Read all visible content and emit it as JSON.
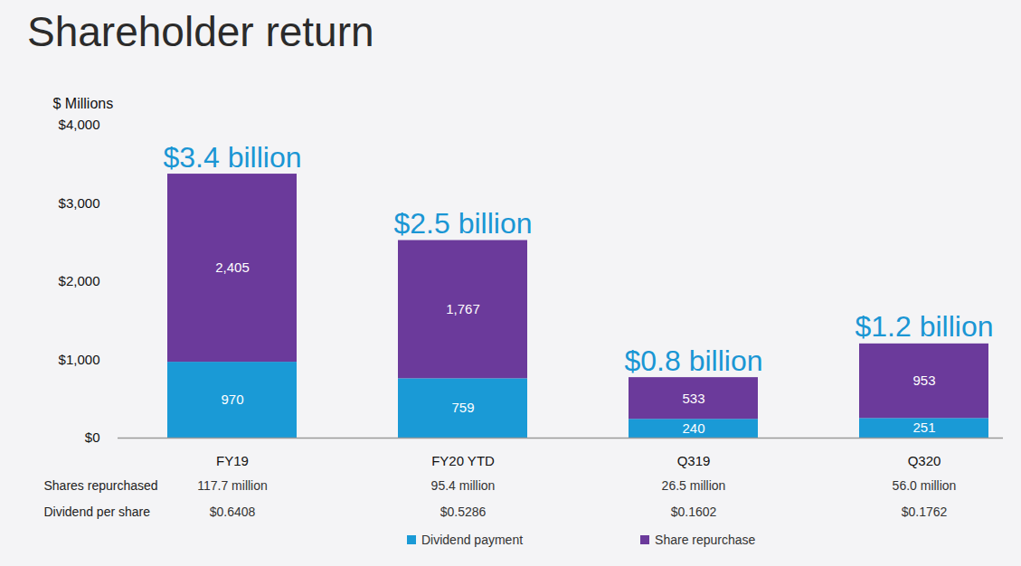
{
  "chart_data": {
    "type": "bar",
    "title": "Shareholder return",
    "y_label": "$ Millions",
    "categories": [
      "FY19",
      "FY20 YTD",
      "Q319",
      "Q320"
    ],
    "series": [
      {
        "name": "Dividend payment",
        "color": "#1a9ad6",
        "values": [
          970,
          759,
          240,
          251
        ]
      },
      {
        "name": "Share repurchase",
        "color": "#6b3a9b",
        "values": [
          2405,
          1767,
          533,
          953
        ],
        "value_labels": [
          "2,405",
          "1,767",
          "533",
          "953"
        ]
      }
    ],
    "stacked": true,
    "data_labels": true,
    "grid": false,
    "legend": "bottom",
    "ylim": [
      0,
      4000
    ],
    "yticks": [
      {
        "value": 0,
        "label": "$0"
      },
      {
        "value": 1000,
        "label": "$1,000"
      },
      {
        "value": 2000,
        "label": "$2,000"
      },
      {
        "value": 3000,
        "label": "$3,000"
      },
      {
        "value": 4000,
        "label": "$4,000"
      }
    ],
    "annotations": [
      "$3.4 billion",
      "$2.5 billion",
      "$0.8 billion",
      "$1.2 billion"
    ],
    "table": {
      "rows": [
        {
          "label": "Shares repurchased",
          "values": [
            "117.7 million",
            "95.4 million",
            "26.5 million",
            "56.0 million"
          ]
        },
        {
          "label": "Dividend per share",
          "values": [
            "$0.6408",
            "$0.5286",
            "$0.1602",
            "$0.1762"
          ]
        }
      ]
    }
  }
}
